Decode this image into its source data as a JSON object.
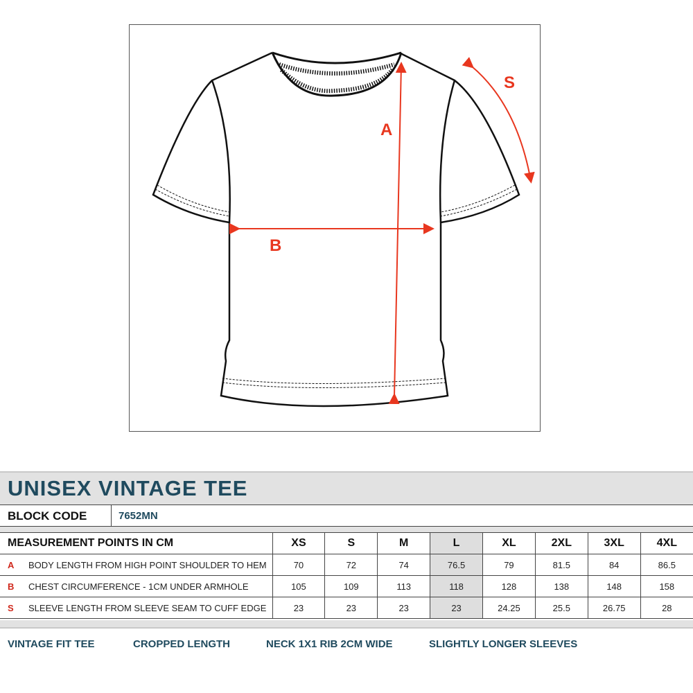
{
  "diagram": {
    "labels": {
      "a": "A",
      "b": "B",
      "s": "S"
    },
    "accent_color": "#e8371f"
  },
  "title": "UNISEX VINTAGE TEE",
  "block_code": {
    "label": "BLOCK CODE",
    "value": "7652MN"
  },
  "table": {
    "header": "MEASUREMENT POINTS IN CM",
    "sizes": [
      "XS",
      "S",
      "M",
      "L",
      "XL",
      "2XL",
      "3XL",
      "4XL"
    ],
    "highlighted_size": "L",
    "rows": [
      {
        "code": "A",
        "label": "BODY LENGTH FROM HIGH POINT SHOULDER TO HEM",
        "values": [
          "70",
          "72",
          "74",
          "76.5",
          "79",
          "81.5",
          "84",
          "86.5"
        ]
      },
      {
        "code": "B",
        "label": "CHEST CIRCUMFERENCE - 1CM UNDER ARMHOLE",
        "values": [
          "105",
          "109",
          "113",
          "118",
          "128",
          "138",
          "148",
          "158"
        ]
      },
      {
        "code": "S",
        "label": "SLEEVE LENGTH FROM SLEEVE SEAM TO CUFF EDGE",
        "values": [
          "23",
          "23",
          "23",
          "23",
          "24.25",
          "25.5",
          "26.75",
          "28"
        ]
      }
    ]
  },
  "features": [
    "VINTAGE  FIT TEE",
    "CROPPED LENGTH",
    "NECK 1X1 RIB 2CM WIDE",
    "SLIGHTLY LONGER SLEEVES"
  ]
}
